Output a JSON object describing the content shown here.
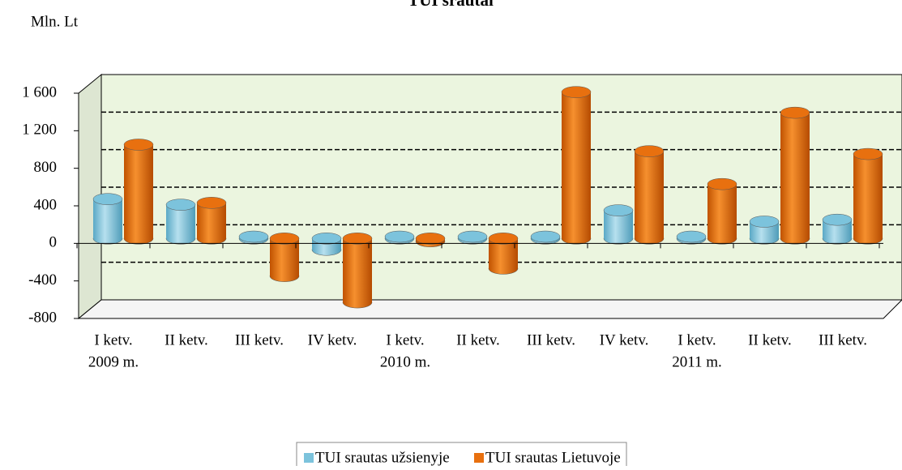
{
  "chart_data": {
    "type": "bar3d",
    "title": "TUI srautai",
    "y_label": "Mln. Lt",
    "categories": [
      "I ketv.",
      "II ketv.",
      "III ketv.",
      "IV ketv.",
      "I ketv.",
      "II ketv.",
      "III ketv.",
      "IV ketv.",
      "I ketv.",
      "II ketv.",
      "III ketv."
    ],
    "category_years": [
      "2009 m.",
      null,
      null,
      null,
      "2010 m.",
      null,
      null,
      null,
      "2011 m.",
      null,
      null
    ],
    "series": [
      {
        "name": "TUI srautas užsienyje",
        "color": "#7cc3dc",
        "values": [
          420,
          360,
          20,
          -120,
          20,
          20,
          20,
          300,
          20,
          180,
          200
        ]
      },
      {
        "name": "TUI srautas Lietuvoje",
        "color": "#e8700f",
        "values": [
          1000,
          380,
          -400,
          -680,
          -30,
          -320,
          1560,
          930,
          580,
          1340,
          900
        ]
      }
    ],
    "ylim": [
      -800,
      1600
    ],
    "yticks": [
      {
        "value": 1600,
        "label": "1 600"
      },
      {
        "value": 1200,
        "label": "1 200"
      },
      800,
      400,
      0,
      -400,
      -800
    ],
    "grid": true,
    "legend": "bottom"
  }
}
